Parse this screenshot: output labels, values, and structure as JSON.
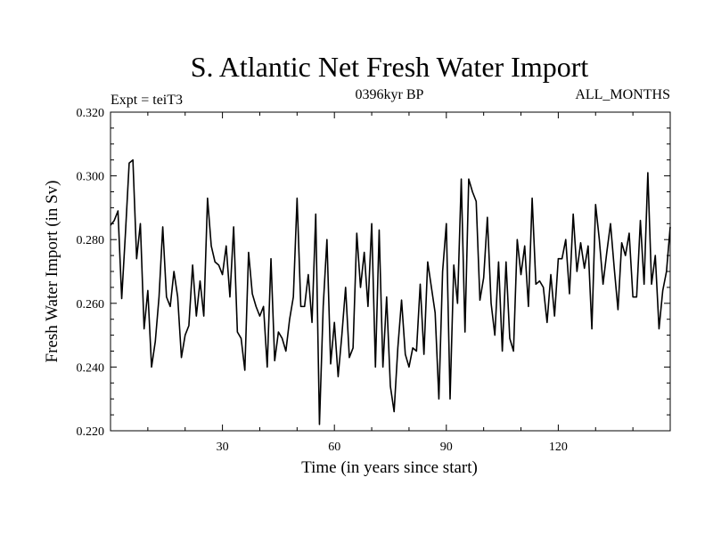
{
  "chart_data": {
    "type": "line",
    "title": "S. Atlantic Net Fresh Water Import",
    "subtitle_left": "Expt = teiT3",
    "subtitle_center": "0396kyr BP",
    "subtitle_right": "ALL_MONTHS",
    "xlabel": "Time (in years since start)",
    "ylabel": "Fresh Water Import (in Sv)",
    "xlim": [
      0,
      150
    ],
    "ylim": [
      0.22,
      0.32
    ],
    "x_ticks": [
      30,
      60,
      90,
      120
    ],
    "x_tick_labels": [
      "30",
      "60",
      "90",
      "120"
    ],
    "y_ticks": [
      0.22,
      0.24,
      0.26,
      0.28,
      0.3,
      0.32
    ],
    "y_tick_labels": [
      "0.220",
      "0.240",
      "0.260",
      "0.280",
      "0.300",
      "0.320"
    ],
    "grid": false,
    "series": [
      {
        "name": "Fresh Water Import",
        "x_start": 0,
        "x_step": 1,
        "values": [
          0.2845,
          0.286,
          0.289,
          0.2615,
          0.282,
          0.304,
          0.305,
          0.274,
          0.285,
          0.252,
          0.264,
          0.24,
          0.248,
          0.262,
          0.284,
          0.262,
          0.259,
          0.27,
          0.262,
          0.243,
          0.25,
          0.253,
          0.272,
          0.256,
          0.267,
          0.256,
          0.293,
          0.278,
          0.273,
          0.272,
          0.269,
          0.278,
          0.262,
          0.284,
          0.251,
          0.249,
          0.239,
          0.276,
          0.263,
          0.259,
          0.256,
          0.259,
          0.24,
          0.274,
          0.242,
          0.251,
          0.249,
          0.245,
          0.255,
          0.262,
          0.293,
          0.259,
          0.259,
          0.269,
          0.254,
          0.288,
          0.222,
          0.259,
          0.28,
          0.241,
          0.254,
          0.237,
          0.25,
          0.265,
          0.243,
          0.246,
          0.282,
          0.265,
          0.276,
          0.259,
          0.285,
          0.24,
          0.283,
          0.24,
          0.262,
          0.234,
          0.226,
          0.246,
          0.261,
          0.244,
          0.24,
          0.246,
          0.245,
          0.266,
          0.244,
          0.273,
          0.265,
          0.257,
          0.23,
          0.27,
          0.285,
          0.23,
          0.272,
          0.26,
          0.299,
          0.251,
          0.299,
          0.295,
          0.292,
          0.261,
          0.268,
          0.287,
          0.26,
          0.25,
          0.273,
          0.245,
          0.273,
          0.249,
          0.245,
          0.28,
          0.269,
          0.278,
          0.259,
          0.293,
          0.266,
          0.267,
          0.265,
          0.254,
          0.269,
          0.256,
          0.274,
          0.274,
          0.28,
          0.263,
          0.288,
          0.27,
          0.279,
          0.271,
          0.278,
          0.252,
          0.291,
          0.28,
          0.266,
          0.276,
          0.285,
          0.271,
          0.258,
          0.279,
          0.275,
          0.282,
          0.262,
          0.262,
          0.286,
          0.266,
          0.301,
          0.266,
          0.275,
          0.252,
          0.264,
          0.27,
          0.284
        ]
      }
    ]
  }
}
